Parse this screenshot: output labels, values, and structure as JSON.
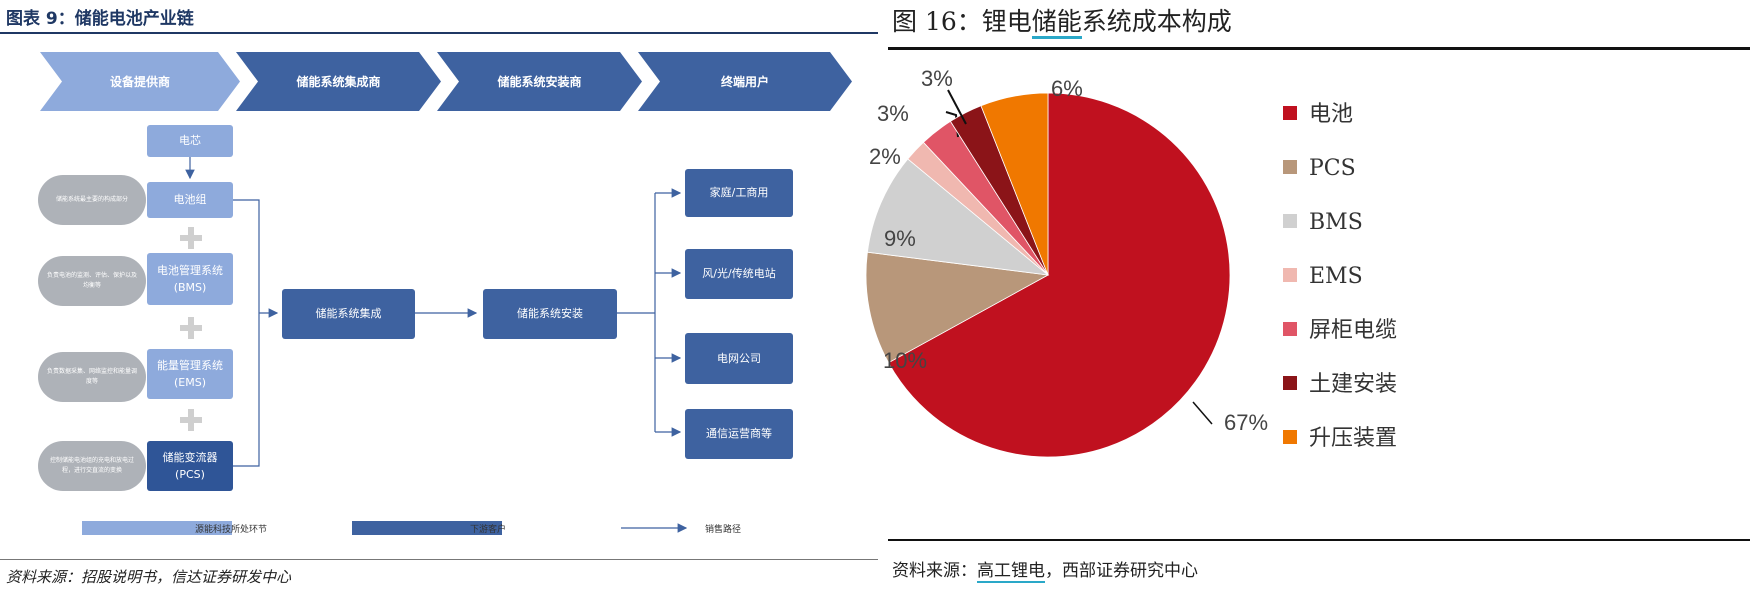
{
  "left": {
    "title": "图表 9：储能电池产业链",
    "chevrons": [
      "设备提供商",
      "储能系统集成商",
      "储能系统安装商",
      "终端用户"
    ],
    "boxes": {
      "cell": "电芯",
      "battery_pack": "电池组",
      "bms_line1": "电池管理系统",
      "bms_line2": "(BMS)",
      "ems_line1": "能量管理系统",
      "ems_line2": "(EMS)",
      "pcs_line1": "储能变流器",
      "pcs_line2": "(PCS)",
      "integration": "储能系统集成",
      "installation": "储能系统安装",
      "users": [
        "家庭/工商用",
        "风/光/传统电站",
        "电网公司",
        "通信运营商等"
      ]
    },
    "pills": [
      "储能系统最主要的构成部分",
      "负责电池的监测、评估、保护以及均衡等",
      "负责数据采集、网络监控和能量调度等",
      "控制储能电池组的充电和放电过程，进行交直流的变换"
    ],
    "legend": {
      "light": "源能科技所处环节",
      "dark": "下游客户",
      "arrow": "销售路径"
    },
    "source": "资料来源：招股说明书，信达证券研发中心"
  },
  "right": {
    "title_prefix": "图 16：锂电",
    "title_highlight": "储能",
    "title_suffix": "系统成本构成",
    "source_prefix": "资料来源：",
    "source_highlight": "高工锂电",
    "source_suffix": "，西部证券研究中心"
  },
  "chart_data": {
    "type": "pie",
    "title": "",
    "slices": [
      {
        "name": "电池",
        "value": 67,
        "label": "67%",
        "color": "#c0111f"
      },
      {
        "name": "PCS",
        "value": 10,
        "label": "10%",
        "color": "#b8977a"
      },
      {
        "name": "BMS",
        "value": 9,
        "label": "9%",
        "color": "#d0d0d0"
      },
      {
        "name": "EMS",
        "value": 2,
        "label": "2%",
        "color": "#f0b8b0"
      },
      {
        "name": "屏柜电缆",
        "value": 3,
        "label": "3%",
        "color": "#e05566"
      },
      {
        "name": "土建安装",
        "value": 3,
        "label": "3%",
        "color": "#8b1418"
      },
      {
        "name": "升压装置",
        "value": 6,
        "label": "6%",
        "color": "#f07800"
      }
    ],
    "legend_position": "right"
  }
}
